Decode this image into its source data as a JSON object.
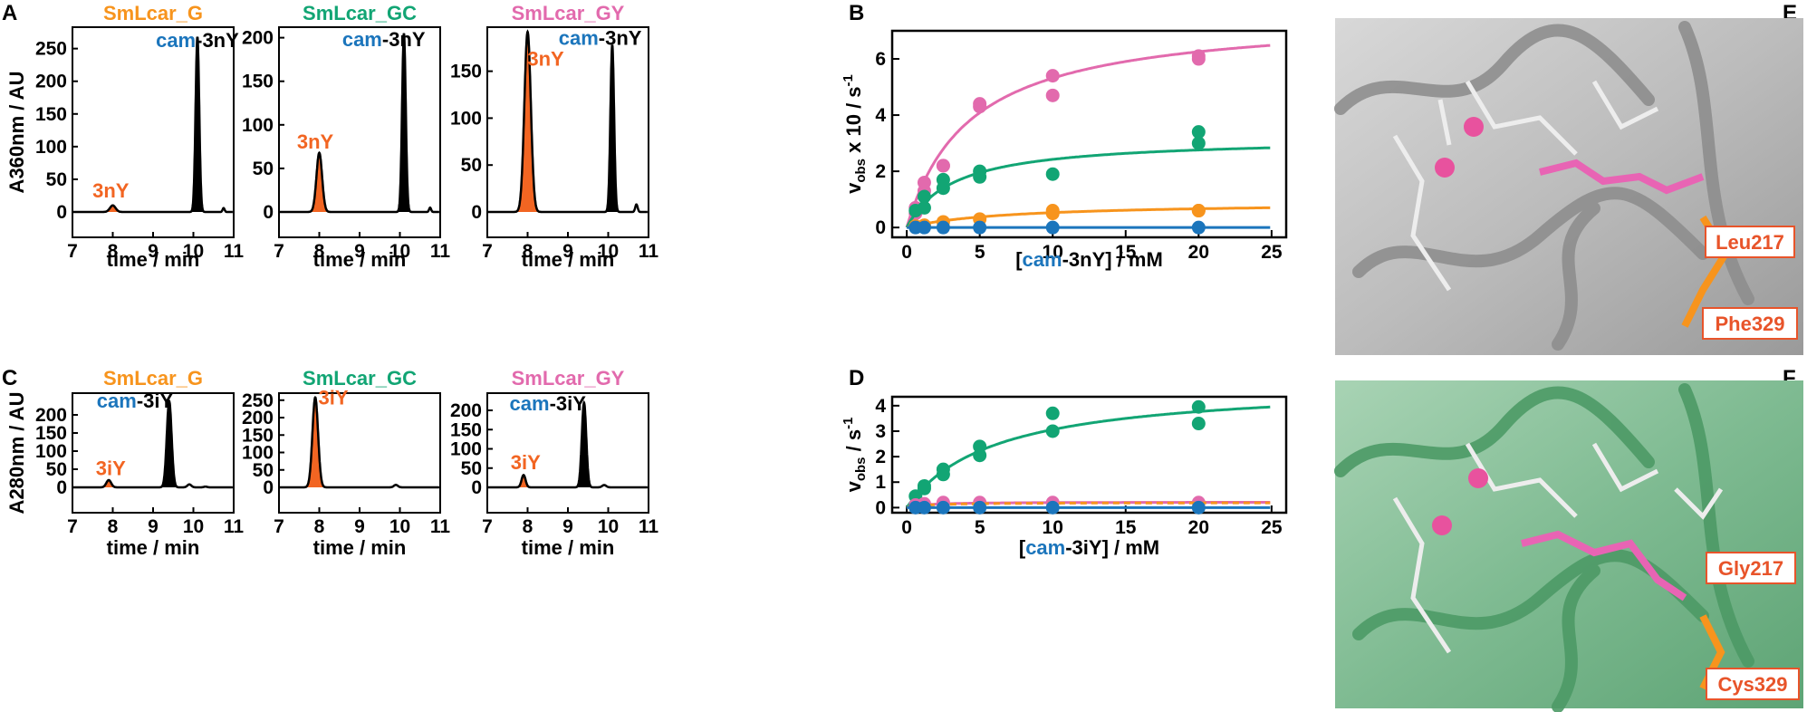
{
  "colors": {
    "G": "#f7941d",
    "GC": "#12a574",
    "GY": "#e26aad",
    "blue": "#1b75bc",
    "orangeRed": "#f26522",
    "black": "#000000"
  },
  "panel_labels": [
    "A",
    "B",
    "C",
    "D",
    "E",
    "F"
  ],
  "chromatograms": {
    "row1": {
      "ylabel": "A360nm / AU",
      "xlabel": "time / min",
      "xticks": [
        "7",
        "8",
        "9",
        "10",
        "11"
      ],
      "panels": [
        {
          "title": "SmLcar_G",
          "titleColor": "G",
          "ymax": 280,
          "yticks": [
            "0",
            "50",
            "100",
            "150",
            "200",
            "250"
          ],
          "ytickVals": [
            0,
            50,
            100,
            150,
            200,
            250
          ],
          "annA": "cam",
          "annB": "-3nY",
          "annAt": [
            10.1,
            252
          ],
          "peakLabel": "3nY",
          "peakLabelAt": [
            7.95,
            22
          ],
          "peaks": [
            {
              "t": 8.0,
              "h": 10,
              "w": 0.07,
              "color": "orangeRed"
            },
            {
              "t": 10.1,
              "h": 268,
              "w": 0.045,
              "color": "black"
            }
          ],
          "bumps": [
            {
              "t": 10.75,
              "h": 6,
              "w": 0.025
            }
          ]
        },
        {
          "title": "SmLcar_GC",
          "titleColor": "GC",
          "ymax": 210,
          "yticks": [
            "0",
            "50",
            "100",
            "150",
            "200"
          ],
          "ytickVals": [
            0,
            50,
            100,
            150,
            200
          ],
          "annA": "cam",
          "annB": "-3nY",
          "annAt": [
            9.6,
            190
          ],
          "peakLabel": "3nY",
          "peakLabelAt": [
            7.9,
            73
          ],
          "peaks": [
            {
              "t": 8.0,
              "h": 68,
              "w": 0.07,
              "color": "orangeRed"
            },
            {
              "t": 10.1,
              "h": 205,
              "w": 0.045,
              "color": "black"
            }
          ],
          "bumps": [
            {
              "t": 10.75,
              "h": 5,
              "w": 0.025
            }
          ]
        },
        {
          "title": "SmLcar_GY",
          "titleColor": "GY",
          "ymax": 195,
          "yticks": [
            "0",
            "50",
            "100",
            "150"
          ],
          "ytickVals": [
            0,
            50,
            100,
            150
          ],
          "annA": "cam",
          "annB": "-3nY",
          "annAt": [
            9.8,
            178
          ],
          "peakLabel": "3nY",
          "peakLabelAt": [
            8.45,
            156
          ],
          "peaks": [
            {
              "t": 8.0,
              "h": 192,
              "w": 0.08,
              "color": "orangeRed"
            },
            {
              "t": 10.1,
              "h": 178,
              "w": 0.045,
              "color": "black"
            }
          ],
          "bumps": [
            {
              "t": 10.7,
              "h": 8,
              "w": 0.03
            }
          ]
        }
      ]
    },
    "row2": {
      "ylabel": "A280nm / AU",
      "xlabel": "time / min",
      "xticks": [
        "7",
        "8",
        "9",
        "10",
        "11"
      ],
      "panels": [
        {
          "title": "SmLcar_G",
          "titleColor": "G",
          "ymax": 255,
          "yticks": [
            "0",
            "50",
            "100",
            "150",
            "200"
          ],
          "ytickVals": [
            0,
            50,
            100,
            150,
            200
          ],
          "annA": "cam",
          "annB": "-3iY",
          "annAt": [
            8.55,
            220
          ],
          "peakLabel": "3iY",
          "peakLabelAt": [
            7.95,
            34
          ],
          "peaks": [
            {
              "t": 7.9,
              "h": 20,
              "w": 0.06,
              "color": "orangeRed"
            },
            {
              "t": 9.4,
              "h": 238,
              "w": 0.06,
              "color": "black"
            }
          ],
          "bumps": [
            {
              "t": 9.9,
              "h": 8,
              "w": 0.05
            },
            {
              "t": 10.3,
              "h": 2,
              "w": 0.04
            }
          ]
        },
        {
          "title": "SmLcar_GC",
          "titleColor": "GC",
          "ymax": 265,
          "yticks": [
            "0",
            "50",
            "100",
            "150",
            "200",
            "250"
          ],
          "ytickVals": [
            0,
            50,
            100,
            150,
            200,
            250
          ],
          "annA": "",
          "annB": "",
          "annAt": [
            0,
            0
          ],
          "peakLabel": "3iY",
          "peakLabelAt": [
            8.35,
            238
          ],
          "peaks": [
            {
              "t": 7.9,
              "h": 258,
              "w": 0.07,
              "color": "orangeRed"
            }
          ],
          "bumps": [
            {
              "t": 9.9,
              "h": 7,
              "w": 0.05
            }
          ]
        },
        {
          "title": "SmLcar_GY",
          "titleColor": "GY",
          "ymax": 240,
          "yticks": [
            "0",
            "50",
            "100",
            "150",
            "200"
          ],
          "ytickVals": [
            0,
            50,
            100,
            150,
            200
          ],
          "annA": "cam",
          "annB": "-3iY",
          "annAt": [
            8.5,
            200
          ],
          "peakLabel": "3iY",
          "peakLabelAt": [
            7.95,
            47
          ],
          "peaks": [
            {
              "t": 7.9,
              "h": 32,
              "w": 0.05,
              "color": "orangeRed"
            },
            {
              "t": 9.4,
              "h": 220,
              "w": 0.055,
              "color": "black"
            }
          ],
          "bumps": [
            {
              "t": 9.9,
              "h": 6,
              "w": 0.05
            }
          ]
        }
      ]
    }
  },
  "kinetics": {
    "B": {
      "ylabel_main": "v",
      "ylabel_sub": "obs",
      "ylabel_rest": " x 10 / s",
      "ylabel_sup": "-1",
      "xlabel_open": "[",
      "xlabel_cam": "cam",
      "xlabel_rest": "-3nY] / mM",
      "xlim": [
        -1,
        26
      ],
      "ylim": [
        -0.35,
        7.0
      ],
      "xticks": [
        0,
        5,
        10,
        15,
        20,
        25
      ],
      "yticks": [
        0,
        2,
        4,
        6
      ],
      "series": [
        {
          "color": "GY",
          "vmax": 7.6,
          "km": 4.3,
          "points": [
            [
              0.6,
              0.5
            ],
            [
              0.6,
              0.7
            ],
            [
              1.2,
              1.3
            ],
            [
              1.2,
              1.6
            ],
            [
              2.5,
              2.2
            ],
            [
              2.5,
              2.2
            ],
            [
              5,
              4.3
            ],
            [
              5,
              4.4
            ],
            [
              10,
              4.7
            ],
            [
              10,
              5.4
            ],
            [
              20,
              6.0
            ],
            [
              20,
              6.1
            ]
          ]
        },
        {
          "color": "GC",
          "vmax": 3.2,
          "km": 3.2,
          "points": [
            [
              0.6,
              0.6
            ],
            [
              1.2,
              0.7
            ],
            [
              1.2,
              1.1
            ],
            [
              2.5,
              1.4
            ],
            [
              2.5,
              1.7
            ],
            [
              5,
              1.8
            ],
            [
              5,
              2.0
            ],
            [
              10,
              1.9
            ],
            [
              20,
              3.0
            ],
            [
              20,
              3.4
            ]
          ]
        },
        {
          "color": "G",
          "vmax": 0.9,
          "km": 7,
          "points": [
            [
              0.6,
              0.05
            ],
            [
              1.2,
              0.08
            ],
            [
              2.5,
              0.2
            ],
            [
              5,
              0.3
            ],
            [
              10,
              0.5
            ],
            [
              10,
              0.6
            ],
            [
              20,
              0.6
            ],
            [
              20,
              0.6
            ]
          ]
        },
        {
          "color": "blue",
          "vmax": 0,
          "km": 1,
          "points": [
            [
              0.6,
              0
            ],
            [
              1.2,
              0
            ],
            [
              2.5,
              0
            ],
            [
              5,
              0
            ],
            [
              10,
              0
            ],
            [
              20,
              0
            ]
          ]
        }
      ]
    },
    "D": {
      "ylabel_main": "v",
      "ylabel_sub": "obs",
      "ylabel_rest": " / s",
      "ylabel_sup": "-1",
      "xlabel_open": "[",
      "xlabel_cam": "cam",
      "xlabel_rest": "-3iY] / mM",
      "xlim": [
        -1,
        26
      ],
      "ylim": [
        -0.2,
        4.35
      ],
      "xticks": [
        0,
        5,
        10,
        15,
        20,
        25
      ],
      "yticks": [
        0,
        1,
        2,
        3,
        4
      ],
      "series": [
        {
          "color": "GC",
          "vmax": 4.9,
          "km": 6.0,
          "points": [
            [
              0.6,
              0.45
            ],
            [
              1.2,
              0.75
            ],
            [
              1.2,
              0.85
            ],
            [
              2.5,
              1.3
            ],
            [
              2.5,
              1.5
            ],
            [
              5,
              2.05
            ],
            [
              5,
              2.4
            ],
            [
              10,
              3.0
            ],
            [
              10,
              3.7
            ],
            [
              20,
              3.3
            ],
            [
              20,
              3.95
            ]
          ]
        },
        {
          "color": "GY",
          "vmax": 0.22,
          "km": 1.2,
          "points": [
            [
              0.6,
              0.1
            ],
            [
              1.2,
              0.15
            ],
            [
              2.5,
              0.2
            ],
            [
              5,
              0.2
            ],
            [
              10,
              0.2
            ],
            [
              20,
              0.2
            ]
          ]
        },
        {
          "color": "G",
          "vmax": 0.2,
          "km": 1.5,
          "dashed": true,
          "points": []
        },
        {
          "color": "blue",
          "vmax": 0,
          "km": 1,
          "points": [
            [
              0.6,
              0
            ],
            [
              1.2,
              0
            ],
            [
              2.5,
              0
            ],
            [
              5,
              0
            ],
            [
              10,
              0
            ],
            [
              20,
              0
            ]
          ]
        }
      ]
    }
  },
  "structures": {
    "E": {
      "label1": "Leu217",
      "label2": "Phe329"
    },
    "F": {
      "label1": "Gly217",
      "label2": "Cys329"
    }
  }
}
